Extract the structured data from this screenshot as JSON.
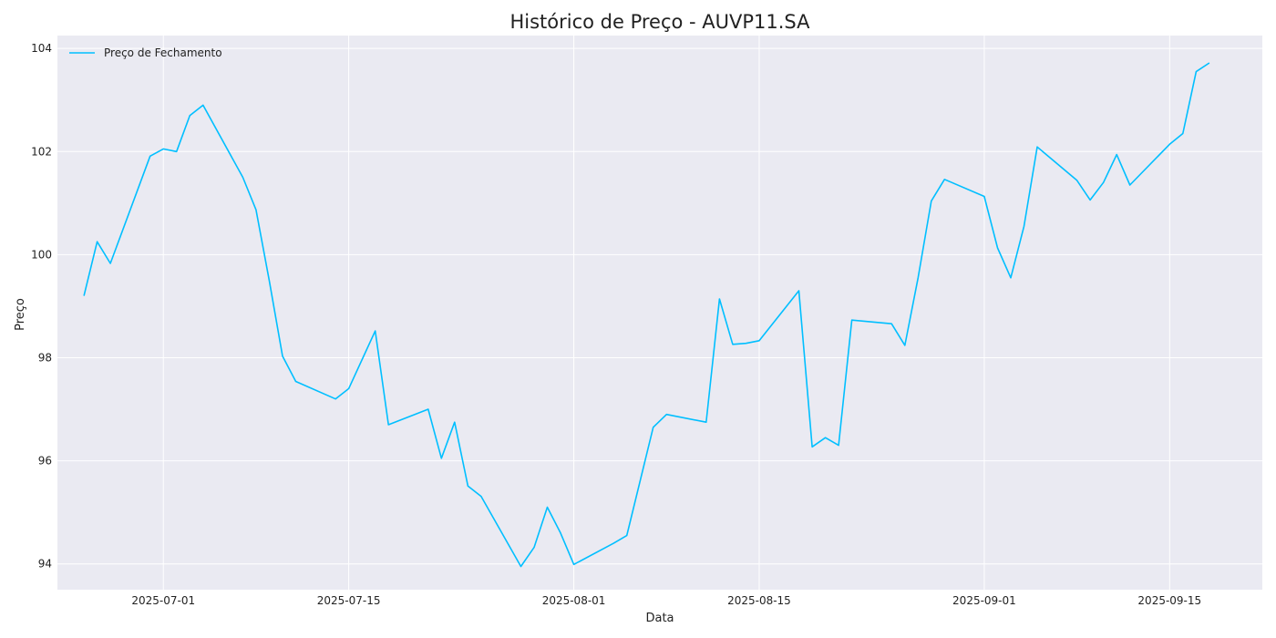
{
  "chart_data": {
    "type": "line",
    "title": "Histórico de Preço - AUVP11.SA",
    "xlabel": "Data",
    "ylabel": "Preço",
    "grid": true,
    "legend_placement": "top-left",
    "xlim": [
      "2025-06-23",
      "2025-09-22"
    ],
    "ylim": [
      93.5,
      104.25
    ],
    "x_ticks": [
      "2025-07-01",
      "2025-07-15",
      "2025-08-01",
      "2025-08-15",
      "2025-09-01",
      "2025-09-15"
    ],
    "y_ticks": [
      94,
      96,
      98,
      100,
      102,
      104
    ],
    "colors": {
      "background": "#eaeaf2",
      "grid": "#ffffff",
      "line": "#00bfff"
    },
    "series": [
      {
        "name": "Preço de Fechamento",
        "x": [
          "2025-06-25",
          "2025-06-26",
          "2025-06-27",
          "2025-06-30",
          "2025-07-01",
          "2025-07-02",
          "2025-07-03",
          "2025-07-04",
          "2025-07-07",
          "2025-07-08",
          "2025-07-09",
          "2025-07-10",
          "2025-07-11",
          "2025-07-14",
          "2025-07-15",
          "2025-07-17",
          "2025-07-18",
          "2025-07-21",
          "2025-07-22",
          "2025-07-23",
          "2025-07-24",
          "2025-07-25",
          "2025-07-28",
          "2025-07-29",
          "2025-07-30",
          "2025-07-31",
          "2025-08-01",
          "2025-08-04",
          "2025-08-05",
          "2025-08-07",
          "2025-08-08",
          "2025-08-11",
          "2025-08-12",
          "2025-08-13",
          "2025-08-14",
          "2025-08-15",
          "2025-08-18",
          "2025-08-19",
          "2025-08-20",
          "2025-08-21",
          "2025-08-22",
          "2025-08-25",
          "2025-08-26",
          "2025-08-27",
          "2025-08-28",
          "2025-08-29",
          "2025-09-01",
          "2025-09-02",
          "2025-09-03",
          "2025-09-04",
          "2025-09-05",
          "2025-09-08",
          "2025-09-09",
          "2025-09-10",
          "2025-09-11",
          "2025-09-12",
          "2025-09-15",
          "2025-09-16",
          "2025-09-17",
          "2025-09-18"
        ],
        "values": [
          99.2,
          100.25,
          99.83,
          101.91,
          102.05,
          102.0,
          102.7,
          102.9,
          101.5,
          100.87,
          99.5,
          98.03,
          97.54,
          97.2,
          97.4,
          98.52,
          96.7,
          97.0,
          96.05,
          96.75,
          95.51,
          95.31,
          93.95,
          94.32,
          95.1,
          94.6,
          93.99,
          94.4,
          94.55,
          96.65,
          96.9,
          96.75,
          99.14,
          98.26,
          98.28,
          98.33,
          99.3,
          96.27,
          96.45,
          96.3,
          98.73,
          98.66,
          98.24,
          99.55,
          101.04,
          101.46,
          101.13,
          100.13,
          99.55,
          100.55,
          102.09,
          101.44,
          101.06,
          101.4,
          101.94,
          101.35,
          102.14,
          102.35,
          103.55,
          103.72
        ]
      }
    ]
  }
}
